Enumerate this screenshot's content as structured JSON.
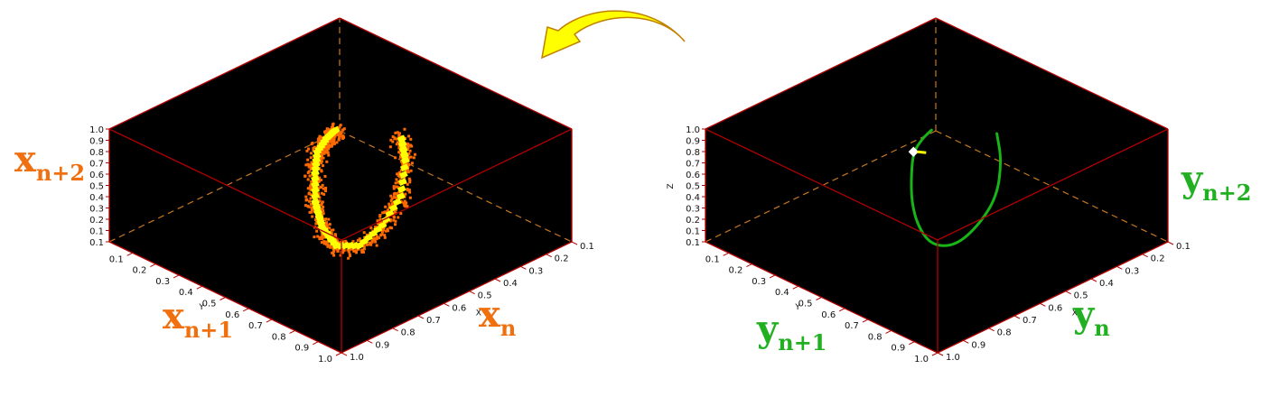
{
  "arrow_color": "#ffff00",
  "chart_data": [
    {
      "type": "scatter",
      "panel": "left",
      "background": "#000000",
      "series": [
        {
          "color": "#ff6a00",
          "points": [
            [
              0.2,
              0.22,
              0.42
            ],
            [
              0.27,
              0.3,
              0.55
            ],
            [
              0.34,
              0.4,
              0.66
            ],
            [
              0.4,
              0.5,
              0.7
            ],
            [
              0.47,
              0.58,
              0.66
            ],
            [
              0.55,
              0.66,
              0.56
            ],
            [
              0.62,
              0.7,
              0.44
            ],
            [
              0.68,
              0.7,
              0.34
            ],
            [
              0.72,
              0.64,
              0.32
            ],
            [
              0.74,
              0.56,
              0.44
            ],
            [
              0.74,
              0.48,
              0.62
            ],
            [
              0.7,
              0.42,
              0.84
            ],
            [
              0.64,
              0.38,
              0.98
            ]
          ]
        },
        {
          "color": "#ffff00",
          "points": [
            [
              0.2,
              0.22,
              0.42
            ],
            [
              0.27,
              0.3,
              0.55
            ],
            [
              0.34,
              0.4,
              0.66
            ],
            [
              0.4,
              0.5,
              0.7
            ],
            [
              0.47,
              0.58,
              0.66
            ],
            [
              0.55,
              0.66,
              0.56
            ],
            [
              0.62,
              0.7,
              0.44
            ],
            [
              0.68,
              0.7,
              0.34
            ],
            [
              0.72,
              0.64,
              0.32
            ],
            [
              0.74,
              0.56,
              0.44
            ],
            [
              0.74,
              0.48,
              0.62
            ],
            [
              0.7,
              0.42,
              0.84
            ],
            [
              0.64,
              0.38,
              0.98
            ]
          ]
        }
      ],
      "axes": {
        "x": {
          "letter": "X",
          "ticks": [
            "0.1",
            "0.2",
            "0.3",
            "0.4",
            "0.5",
            "0.6",
            "0.7",
            "0.8",
            "0.9",
            "1.0"
          ]
        },
        "y": {
          "letter": "Y",
          "ticks": [
            "0.1",
            "0.2",
            "0.3",
            "0.4",
            "0.5",
            "0.6",
            "0.7",
            "0.8",
            "0.9",
            "1.0"
          ]
        },
        "z": {
          "letter": "",
          "ticks": [
            "0.1",
            "0.1",
            "0.2",
            "0.3",
            "0.4",
            "0.5",
            "0.6",
            "0.7",
            "0.8",
            "0.9",
            "1.0"
          ]
        }
      },
      "labels": {
        "color": "#f07010",
        "z": {
          "main": "x",
          "sub": "n+2"
        },
        "y": {
          "main": "x",
          "sub": "n+1"
        },
        "x": {
          "main": "x",
          "sub": "n"
        }
      }
    },
    {
      "type": "line",
      "panel": "right",
      "background": "#000000",
      "series": [
        {
          "color": "#18b418",
          "points": [
            [
              0.2,
              0.22,
              0.42
            ],
            [
              0.27,
              0.3,
              0.55
            ],
            [
              0.34,
              0.4,
              0.66
            ],
            [
              0.4,
              0.5,
              0.7
            ],
            [
              0.47,
              0.58,
              0.66
            ],
            [
              0.55,
              0.66,
              0.56
            ],
            [
              0.62,
              0.7,
              0.44
            ],
            [
              0.68,
              0.7,
              0.34
            ],
            [
              0.72,
              0.64,
              0.32
            ],
            [
              0.74,
              0.56,
              0.44
            ],
            [
              0.74,
              0.48,
              0.62
            ],
            [
              0.7,
              0.42,
              0.84
            ],
            [
              0.64,
              0.38,
              0.98
            ]
          ]
        }
      ],
      "highlight_point": [
        0.4,
        0.5,
        0.7
      ],
      "axes": {
        "x": {
          "letter": "X",
          "ticks": [
            "0.1",
            "0.2",
            "0.3",
            "0.4",
            "0.5",
            "0.6",
            "0.7",
            "0.8",
            "0.9",
            "1.0"
          ]
        },
        "y": {
          "letter": "Y",
          "ticks": [
            "0.1",
            "0.2",
            "0.3",
            "0.4",
            "0.5",
            "0.6",
            "0.7",
            "0.8",
            "0.9",
            "1.0"
          ]
        },
        "z": {
          "letter": "Z",
          "ticks": [
            "0.1",
            "0.1",
            "0.2",
            "0.3",
            "0.4",
            "0.5",
            "0.6",
            "0.7",
            "0.8",
            "0.9",
            "1.0"
          ]
        }
      },
      "labels": {
        "color": "#22b022",
        "z": {
          "main": "y",
          "sub": "n+2"
        },
        "y": {
          "main": "y",
          "sub": "n+1"
        },
        "x": {
          "main": "y",
          "sub": "n"
        }
      }
    }
  ]
}
